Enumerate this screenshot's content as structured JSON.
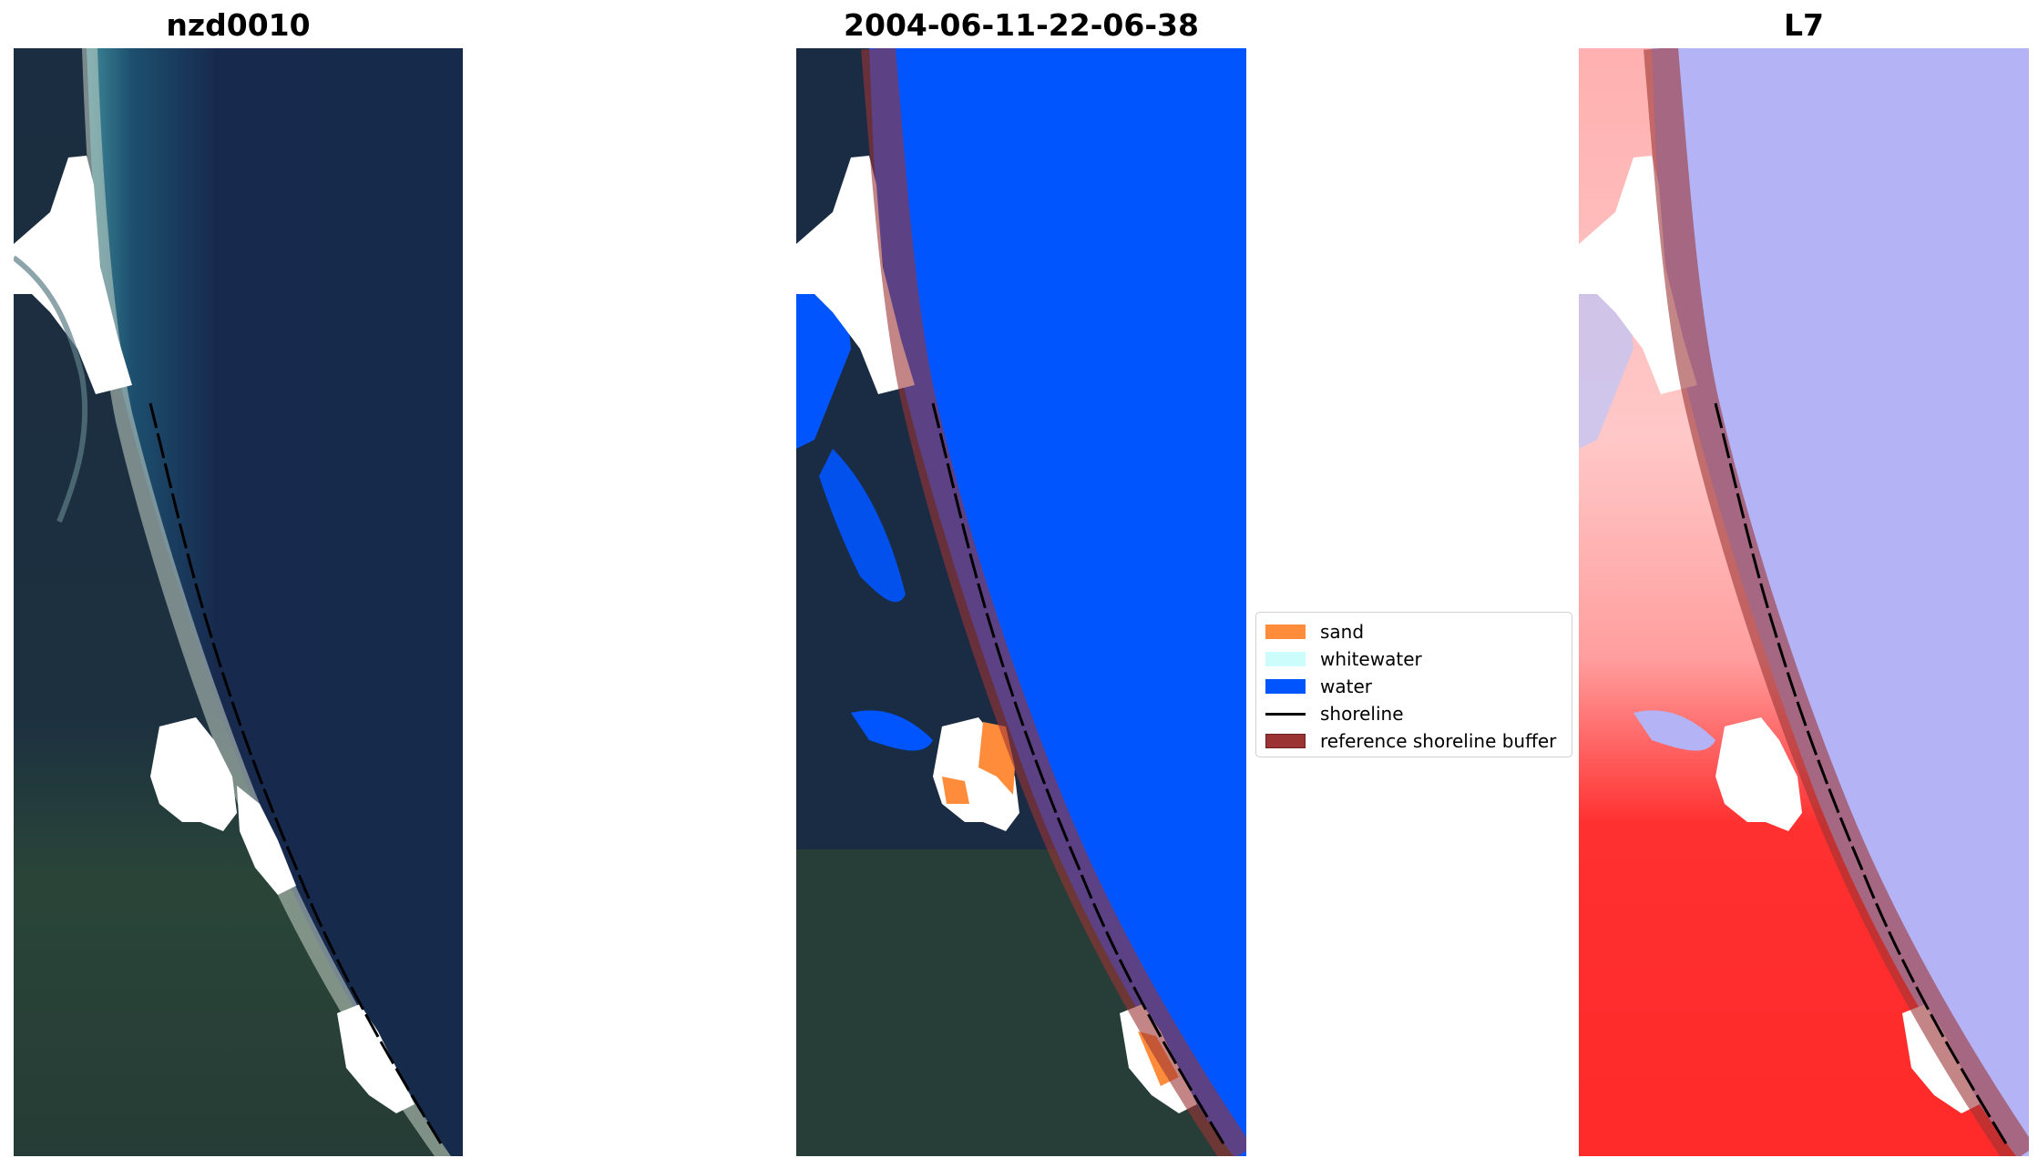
{
  "panels": [
    {
      "title": "nzd0010"
    },
    {
      "title": "2004-06-11-22-06-38"
    },
    {
      "title": "L7"
    }
  ],
  "legend": {
    "items": [
      {
        "label": "sand",
        "color": "#ff8c3a",
        "kind": "patch"
      },
      {
        "label": "whitewater",
        "color": "#ccfcfc",
        "kind": "patch"
      },
      {
        "label": "water",
        "color": "#0055ff",
        "kind": "patch"
      },
      {
        "label": "shoreline",
        "color": "#000000",
        "kind": "line"
      },
      {
        "label": "reference shoreline buffer",
        "color": "#9b3333",
        "kind": "patch"
      }
    ]
  },
  "colors": {
    "land": "#1a2c44",
    "ocean": "#17294d",
    "cloud": "#ffffff",
    "water_class": "#0055ff",
    "sand_class": "#ff8c3a",
    "buffer_overlay": "#9b3333",
    "index_land": "#ff2a2a",
    "index_water": "#b3b3f5"
  }
}
